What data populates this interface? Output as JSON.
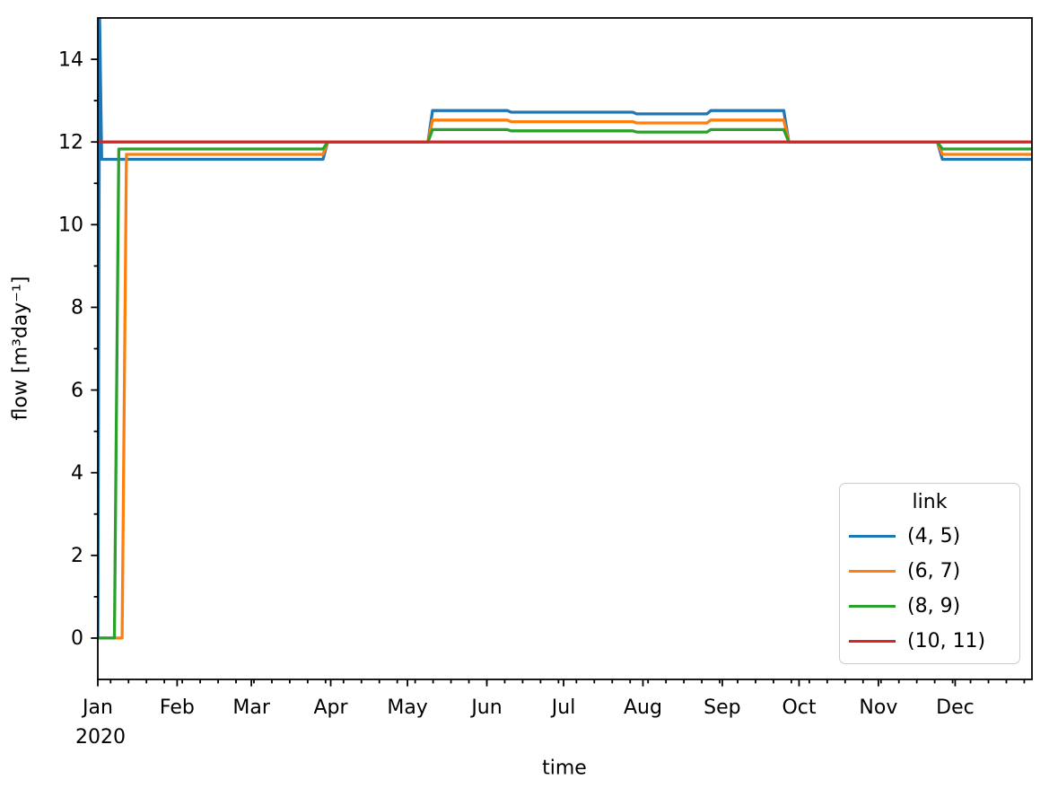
{
  "figure": {
    "background": "#ffffff",
    "text_color": "#000000",
    "axis_color": "#000000"
  },
  "chart_data": {
    "type": "line",
    "title": "",
    "xlabel": "time",
    "ylabel": "flow [m³day⁻¹]",
    "grid": false,
    "x_axis": {
      "unit": "day of year 2020",
      "range_days": [
        0,
        365
      ],
      "major_ticks": [
        {
          "day": 0,
          "label": "Jan",
          "sublabel": "2020"
        },
        {
          "day": 31,
          "label": "Feb"
        },
        {
          "day": 60,
          "label": "Mar"
        },
        {
          "day": 91,
          "label": "Apr"
        },
        {
          "day": 121,
          "label": "May"
        },
        {
          "day": 152,
          "label": "Jun"
        },
        {
          "day": 182,
          "label": "Jul"
        },
        {
          "day": 213,
          "label": "Aug"
        },
        {
          "day": 244,
          "label": "Sep"
        },
        {
          "day": 274,
          "label": "Oct"
        },
        {
          "day": 305,
          "label": "Nov"
        },
        {
          "day": 335,
          "label": "Dec"
        }
      ],
      "minor_tick_start_day": 5,
      "minor_tick_interval_days": 7
    },
    "y_axis": {
      "lim": [
        -1,
        15
      ],
      "major_ticks": [
        0,
        2,
        4,
        6,
        8,
        10,
        12,
        14
      ],
      "minor_ticks": [
        1,
        3,
        5,
        7,
        9,
        11,
        13
      ]
    },
    "legend": {
      "title": "link",
      "position": "lower right",
      "entries": [
        {
          "label": "(4, 5)",
          "color": "#1f77b4"
        },
        {
          "label": "(6, 7)",
          "color": "#ff7f0e"
        },
        {
          "label": "(8, 9)",
          "color": "#2ca02c"
        },
        {
          "label": "(10, 11)",
          "color": "#d62728"
        }
      ]
    },
    "series": [
      {
        "name": "(4, 5)",
        "color": "#1f77b4",
        "points_day_value": [
          [
            0,
            0
          ],
          [
            0.7,
            15
          ],
          [
            1.5,
            11.58
          ],
          [
            88,
            11.58
          ],
          [
            89.8,
            12
          ],
          [
            129,
            12
          ],
          [
            130.8,
            12.76
          ],
          [
            160,
            12.76
          ],
          [
            161.5,
            12.72
          ],
          [
            209,
            12.72
          ],
          [
            210.5,
            12.68
          ],
          [
            238,
            12.68
          ],
          [
            239.5,
            12.76
          ],
          [
            268,
            12.76
          ],
          [
            270,
            12
          ],
          [
            328,
            12
          ],
          [
            330,
            11.58
          ],
          [
            365,
            11.58
          ]
        ]
      },
      {
        "name": "(6, 7)",
        "color": "#ff7f0e",
        "points_day_value": [
          [
            0,
            0
          ],
          [
            9.5,
            0
          ],
          [
            11.2,
            11.7
          ],
          [
            88,
            11.7
          ],
          [
            89.8,
            12
          ],
          [
            129,
            12
          ],
          [
            130.8,
            12.53
          ],
          [
            160,
            12.53
          ],
          [
            161.5,
            12.49
          ],
          [
            209,
            12.49
          ],
          [
            210.5,
            12.46
          ],
          [
            238,
            12.46
          ],
          [
            239.5,
            12.53
          ],
          [
            268,
            12.53
          ],
          [
            270,
            12
          ],
          [
            328,
            12
          ],
          [
            330,
            11.7
          ],
          [
            365,
            11.7
          ]
        ]
      },
      {
        "name": "(8, 9)",
        "color": "#2ca02c",
        "points_day_value": [
          [
            0,
            0
          ],
          [
            6.5,
            0
          ],
          [
            8.2,
            11.83
          ],
          [
            88,
            11.83
          ],
          [
            89.8,
            12
          ],
          [
            129,
            12
          ],
          [
            130.8,
            12.3
          ],
          [
            160,
            12.3
          ],
          [
            161.5,
            12.27
          ],
          [
            209,
            12.27
          ],
          [
            210.5,
            12.24
          ],
          [
            238,
            12.24
          ],
          [
            239.5,
            12.3
          ],
          [
            268,
            12.3
          ],
          [
            270,
            12
          ],
          [
            328,
            12
          ],
          [
            330,
            11.83
          ],
          [
            365,
            11.83
          ]
        ]
      },
      {
        "name": "(10, 11)",
        "color": "#d62728",
        "points_day_value": [
          [
            0,
            12
          ],
          [
            365,
            12
          ]
        ]
      }
    ]
  }
}
